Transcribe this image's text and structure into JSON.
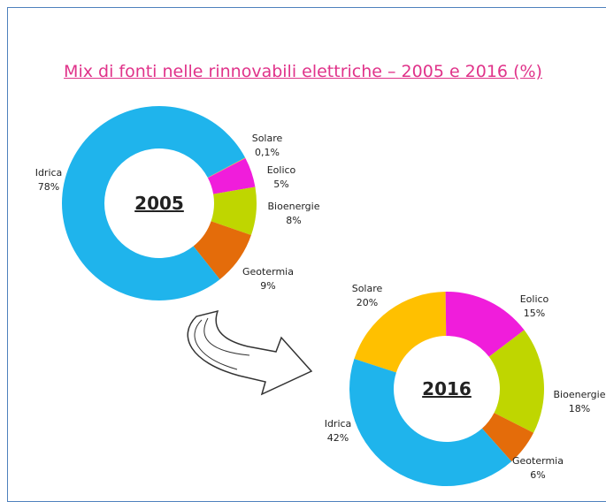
{
  "title": "Mix di fonti nelle rinnovabili elettriche – 2005 e 2016 (%)",
  "chart_data": [
    {
      "type": "pie",
      "title": "2005",
      "categories": [
        "Solare",
        "Eolico",
        "Bioenergie",
        "Geotermia",
        "Idrica"
      ],
      "values": [
        0.1,
        5,
        8,
        9,
        78
      ],
      "value_labels": [
        "0,1%",
        "5%",
        "8%",
        "9%",
        "78%"
      ],
      "colors": [
        "#ffc000",
        "#f01ddb",
        "#bfd600",
        "#e46c0a",
        "#1fb4ec"
      ]
    },
    {
      "type": "pie",
      "title": "2016",
      "categories": [
        "Solare",
        "Eolico",
        "Bioenergie",
        "Geotermia",
        "Idrica"
      ],
      "values": [
        20,
        15,
        18,
        6,
        42
      ],
      "value_labels": [
        "20%",
        "15%",
        "18%",
        "6%",
        "42%"
      ],
      "colors": [
        "#ffc000",
        "#f01ddb",
        "#bfd600",
        "#e46c0a",
        "#1fb4ec"
      ]
    }
  ]
}
